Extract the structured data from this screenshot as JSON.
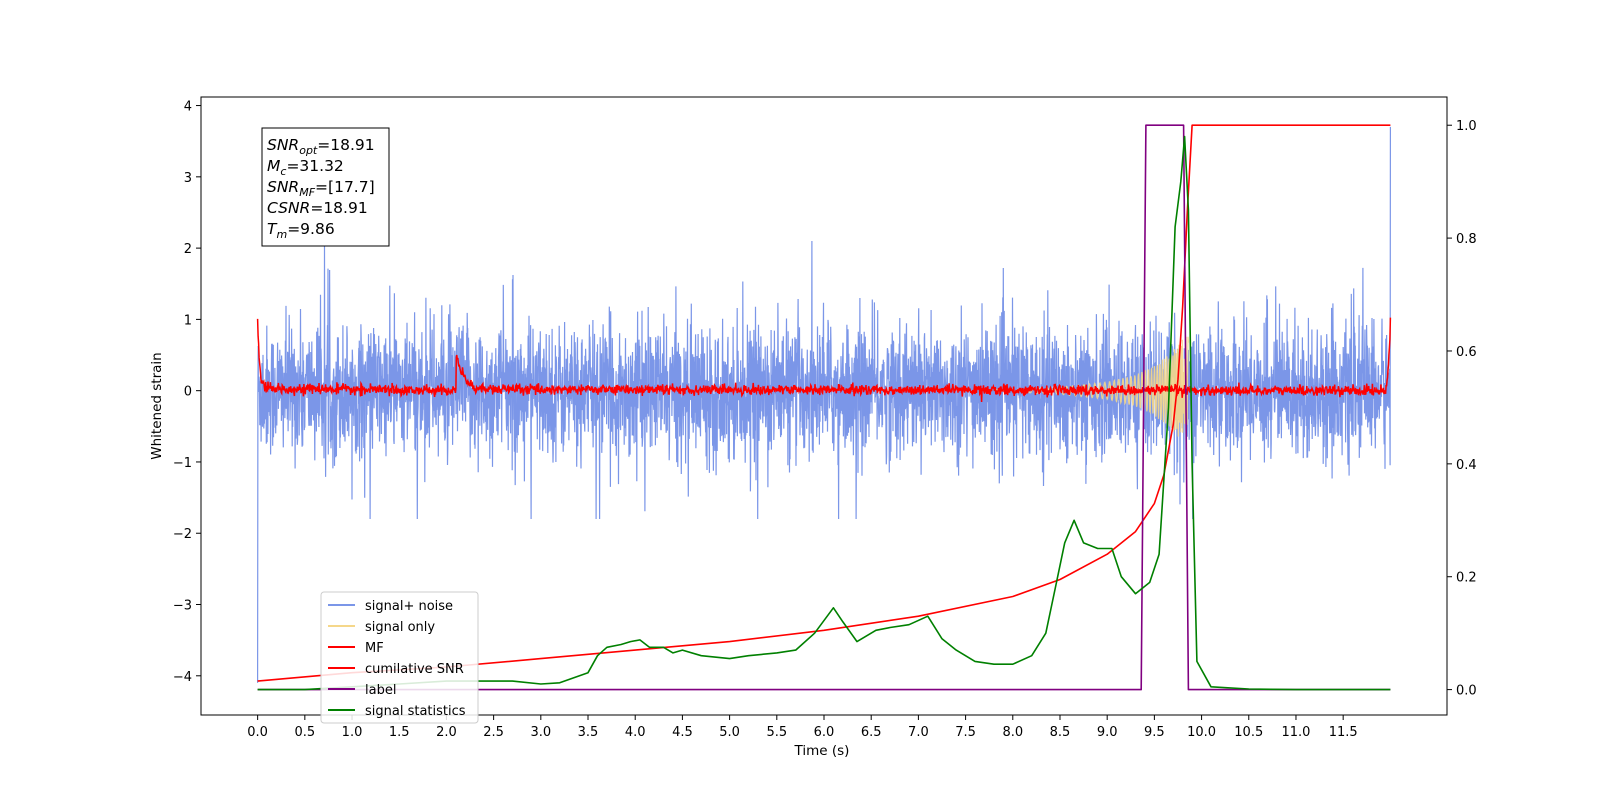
{
  "chart_data": {
    "type": "line",
    "title": "",
    "xlabel": "Time (s)",
    "ylabel": "Whitened strain",
    "y2label": "",
    "xlim": [
      -0.6,
      12.6
    ],
    "ylim": [
      -4.55,
      4.12
    ],
    "y2lim": [
      -0.045,
      1.05
    ],
    "xticks": [
      0.0,
      0.5,
      1.0,
      1.5,
      2.0,
      2.5,
      3.0,
      3.5,
      4.0,
      4.5,
      5.0,
      5.5,
      6.0,
      6.5,
      7.0,
      7.5,
      8.0,
      8.5,
      9.0,
      9.5,
      10.0,
      10.5,
      11.0,
      11.5
    ],
    "xtick_labels": [
      "0.0",
      "0.5",
      "1.0",
      "1.5",
      "2.0",
      "2.5",
      "3.0",
      "3.5",
      "4.0",
      "4.5",
      "5.0",
      "5.5",
      "6.0",
      "6.5",
      "7.0",
      "7.5",
      "8.0",
      "8.5",
      "9.0",
      "9.5",
      "10.0",
      "10.5",
      "11.0",
      "11.5"
    ],
    "yticks": [
      -4,
      -3,
      -2,
      -1,
      0,
      1,
      2,
      3,
      4
    ],
    "ytick_labels": [
      "−4",
      "−3",
      "−2",
      "−1",
      "0",
      "1",
      "2",
      "3",
      "4"
    ],
    "y2ticks": [
      0.0,
      0.2,
      0.4,
      0.6,
      0.8,
      1.0
    ],
    "y2tick_labels": [
      "0.0",
      "0.2",
      "0.4",
      "0.6",
      "0.8",
      "1.0"
    ],
    "grid": false,
    "legend_position": "lower-left",
    "annotation": [
      {
        "base": "SNR",
        "sub": "opt",
        "rest": "=18.91"
      },
      {
        "base": "M",
        "sub": "c",
        "rest": "=31.32"
      },
      {
        "base": "SNR",
        "sub": "MF",
        "rest": "=[17.7]"
      },
      {
        "base": "CSNR",
        "sub": "",
        "rest": "=18.91"
      },
      {
        "base": "T",
        "sub": "m",
        "rest": "=9.86"
      }
    ],
    "series": [
      {
        "name": "signal+ noise",
        "axis": "left",
        "color": "#7b96e8",
        "note": "dense noise, amplitude ~1.2, spikes to ~2.1; ends at -4.1 at 0 s and 3.7 at 12 s",
        "envelope": {
          "x": [
            0,
            12
          ],
          "min": -1.8,
          "max": 2.1
        }
      },
      {
        "name": "signal only",
        "axis": "left",
        "color": "#f5d78a",
        "note": "chirp growing until ~9.86 s",
        "x": [
          8.0,
          8.5,
          9.0,
          9.3,
          9.5,
          9.65,
          9.75,
          9.82,
          9.86
        ],
        "amplitude": [
          0.02,
          0.05,
          0.12,
          0.22,
          0.35,
          0.5,
          0.65,
          0.75,
          0.8
        ]
      },
      {
        "name": "MF",
        "axis": "left",
        "color": "#ff0000",
        "note": "matched filter output; spikes to 1.0 at ends, bump ~0.3 near 2.15 s",
        "x": [
          0.0,
          0.01,
          0.05,
          2.1,
          2.15,
          2.3,
          11.95,
          12.0
        ],
        "y": [
          1.0,
          0.1,
          0.03,
          0.0,
          0.3,
          0.02,
          0.0,
          1.0
        ]
      },
      {
        "name": "cumilative SNR",
        "axis": "right",
        "color": "#ff0000",
        "x": [
          0.0,
          1.0,
          2.0,
          3.0,
          4.0,
          5.0,
          6.0,
          7.0,
          8.0,
          8.5,
          9.0,
          9.3,
          9.5,
          9.6,
          9.7,
          9.75,
          9.8,
          9.85,
          9.9,
          12.0
        ],
        "y": [
          0.015,
          0.03,
          0.04,
          0.055,
          0.07,
          0.085,
          0.105,
          0.13,
          0.165,
          0.195,
          0.24,
          0.28,
          0.33,
          0.38,
          0.47,
          0.55,
          0.68,
          0.85,
          1.0,
          1.0
        ]
      },
      {
        "name": "label",
        "axis": "right",
        "color": "#800080",
        "x": [
          0.0,
          9.36,
          9.41,
          9.81,
          9.86,
          12.0
        ],
        "y": [
          0.0,
          0.0,
          1.0,
          1.0,
          0.0,
          0.0
        ]
      },
      {
        "name": "signal statistics",
        "axis": "right",
        "color": "#008000",
        "x": [
          0.0,
          0.5,
          1.0,
          1.5,
          2.0,
          2.5,
          2.7,
          3.0,
          3.2,
          3.5,
          3.6,
          3.7,
          3.85,
          3.95,
          4.05,
          4.15,
          4.3,
          4.4,
          4.5,
          4.7,
          5.0,
          5.2,
          5.5,
          5.7,
          5.9,
          6.1,
          6.2,
          6.35,
          6.55,
          6.7,
          6.9,
          7.1,
          7.25,
          7.4,
          7.6,
          7.8,
          8.0,
          8.2,
          8.35,
          8.45,
          8.55,
          8.65,
          8.75,
          8.9,
          9.05,
          9.15,
          9.3,
          9.45,
          9.55,
          9.65,
          9.72,
          9.78,
          9.82,
          9.86,
          9.9,
          9.95,
          10.1,
          10.5,
          11.0,
          12.0
        ],
        "y": [
          0.0,
          0.0,
          0.005,
          0.01,
          0.015,
          0.015,
          0.015,
          0.01,
          0.012,
          0.03,
          0.06,
          0.075,
          0.08,
          0.085,
          0.088,
          0.075,
          0.075,
          0.065,
          0.07,
          0.06,
          0.055,
          0.06,
          0.065,
          0.07,
          0.1,
          0.145,
          0.12,
          0.085,
          0.105,
          0.11,
          0.115,
          0.13,
          0.09,
          0.07,
          0.05,
          0.045,
          0.045,
          0.06,
          0.1,
          0.18,
          0.26,
          0.3,
          0.26,
          0.25,
          0.25,
          0.2,
          0.17,
          0.19,
          0.24,
          0.5,
          0.82,
          0.9,
          0.98,
          0.85,
          0.4,
          0.05,
          0.005,
          0.001,
          0.0,
          0.0
        ]
      }
    ]
  }
}
